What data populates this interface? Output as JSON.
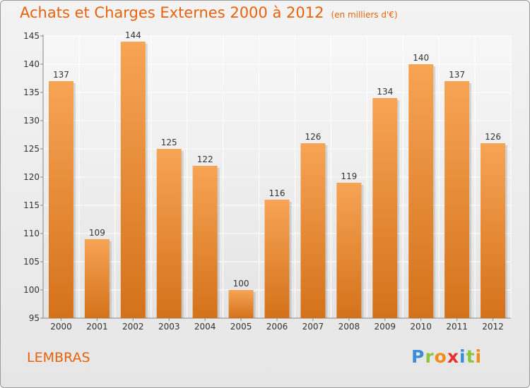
{
  "header": {
    "title": "Achats et Charges Externes 2000 à 2012",
    "subtitle": "(en milliers d'€)"
  },
  "footer": {
    "commune": "LEMBRAS",
    "logo_letters": [
      "P",
      "r",
      "o",
      "x",
      "i",
      "t",
      "i"
    ],
    "logo_colors": [
      "#3a8ed8",
      "#8cc63f",
      "#f28c1a",
      "#e8312f",
      "#3a8ed8",
      "#8cc63f",
      "#f28c1a"
    ]
  },
  "chart_data": {
    "type": "bar",
    "title": "Achats et Charges Externes 2000 à 2012",
    "subtitle": "(en milliers d'€)",
    "categories": [
      "2000",
      "2001",
      "2002",
      "2003",
      "2004",
      "2005",
      "2006",
      "2007",
      "2008",
      "2009",
      "2010",
      "2011",
      "2012"
    ],
    "values": [
      137,
      109,
      144,
      125,
      122,
      100,
      116,
      126,
      119,
      134,
      140,
      137,
      126
    ],
    "ylim": [
      95,
      145
    ],
    "yticks": [
      95,
      100,
      105,
      110,
      115,
      120,
      125,
      130,
      135,
      140,
      145
    ],
    "grid": true,
    "bar_color_top": "#f7a455",
    "bar_color_bottom": "#d4721a",
    "title_color": "#e8620c"
  }
}
